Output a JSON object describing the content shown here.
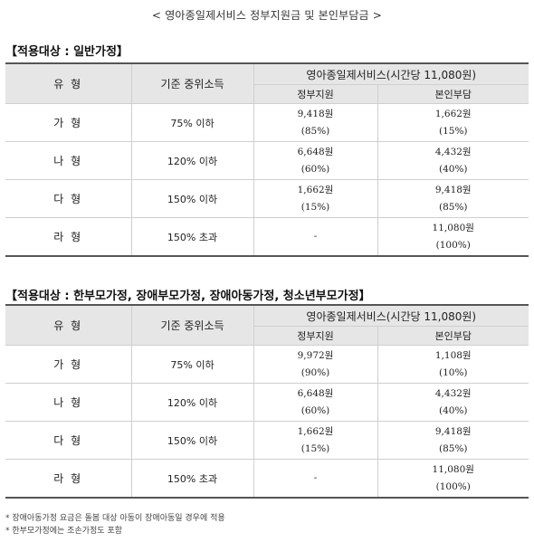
{
  "page_title": "< 영아종일제서비스 정부지원금 및 본인부담금 >",
  "sections": [
    {
      "title": "【적용대상 : 일반가정】",
      "header": {
        "type": "유 형",
        "income": "기준 중위소득",
        "service": "영아종일제서비스(시간당 11,080원)",
        "gov": "정부지원",
        "self": "본인부담"
      },
      "rows": [
        {
          "type": "가 형",
          "income": "75% 이하",
          "gov_amount": "9,418원",
          "gov_pct": "(85%)",
          "self_amount": "1,662원",
          "self_pct": "(15%)"
        },
        {
          "type": "나 형",
          "income": "120% 이하",
          "gov_amount": "6,648원",
          "gov_pct": "(60%)",
          "self_amount": "4,432원",
          "self_pct": "(40%)"
        },
        {
          "type": "다 형",
          "income": "150% 이하",
          "gov_amount": "1,662원",
          "gov_pct": "(15%)",
          "self_amount": "9,418원",
          "self_pct": "(85%)"
        },
        {
          "type": "라 형",
          "income": "150% 초과",
          "gov_amount": "-",
          "gov_pct": "",
          "self_amount": "11,080원",
          "self_pct": "(100%)"
        }
      ]
    },
    {
      "title": "【적용대상 : 한부모가정, 장애부모가정, 장애아동가정, 청소년부모가정】",
      "header": {
        "type": "유 형",
        "income": "기준 중위소득",
        "service": "영아종일제서비스(시간당 11,080원)",
        "gov": "정부지원",
        "self": "본인부담"
      },
      "rows": [
        {
          "type": "가 형",
          "income": "75% 이하",
          "gov_amount": "9,972원",
          "gov_pct": "(90%)",
          "self_amount": "1,108원",
          "self_pct": "(10%)"
        },
        {
          "type": "나 형",
          "income": "120% 이하",
          "gov_amount": "6,648원",
          "gov_pct": "(60%)",
          "self_amount": "4,432원",
          "self_pct": "(40%)"
        },
        {
          "type": "다 형",
          "income": "150% 이하",
          "gov_amount": "1,662원",
          "gov_pct": "(15%)",
          "self_amount": "9,418원",
          "self_pct": "(85%)"
        },
        {
          "type": "라 형",
          "income": "150% 초과",
          "gov_amount": "-",
          "gov_pct": "",
          "self_amount": "11,080원",
          "self_pct": "(100%)"
        }
      ]
    }
  ],
  "notes": [
    "* 장애아동가정 요금은 돌봄 대상 아동이 장애아동일 경우에 적용",
    "* 한부모가정에는 조손가정도 포함"
  ]
}
